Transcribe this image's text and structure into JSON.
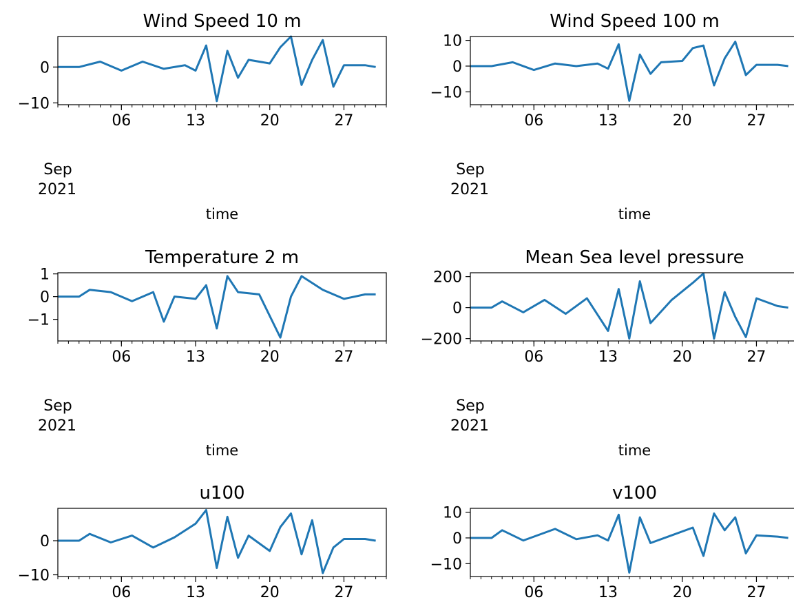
{
  "figure": {
    "time_axis": {
      "xlabel": "time",
      "tick_labels": [
        "06",
        "13",
        "20",
        "27"
      ],
      "month_label": "Sep",
      "year_label": "2021",
      "range": [
        "2021-08-31",
        "2021-10-01"
      ]
    },
    "line_color": "#1f77b4"
  },
  "chart_data": [
    {
      "type": "line",
      "title": "Wind Speed 10 m",
      "xlabel": "time",
      "ylim": [
        -10.5,
        8.5
      ],
      "yticks": [
        0,
        -10
      ],
      "ytick_labels": [
        "0",
        "−10"
      ],
      "x_dates": [
        "2021-08-31",
        "2021-09-02",
        "2021-09-04",
        "2021-09-06",
        "2021-09-08",
        "2021-09-10",
        "2021-09-12",
        "2021-09-13",
        "2021-09-14",
        "2021-09-15",
        "2021-09-16",
        "2021-09-17",
        "2021-09-18",
        "2021-09-20",
        "2021-09-21",
        "2021-09-22",
        "2021-09-23",
        "2021-09-24",
        "2021-09-25",
        "2021-09-26",
        "2021-09-27",
        "2021-09-29",
        "2021-09-30"
      ],
      "values": [
        0,
        0,
        1.5,
        -1.0,
        1.5,
        -0.5,
        0.5,
        -1.0,
        6.0,
        -9.5,
        4.5,
        -3.0,
        2.0,
        1.0,
        5.5,
        8.5,
        -5.0,
        2.0,
        7.5,
        -5.5,
        0.5,
        0.5,
        0.0
      ]
    },
    {
      "type": "line",
      "title": "Wind Speed 100 m",
      "xlabel": "time",
      "ylim": [
        -15,
        11.5
      ],
      "yticks": [
        10,
        0,
        -10
      ],
      "ytick_labels": [
        "10",
        "0",
        "−10"
      ],
      "x_dates": [
        "2021-08-31",
        "2021-09-02",
        "2021-09-04",
        "2021-09-06",
        "2021-09-08",
        "2021-09-10",
        "2021-09-12",
        "2021-09-13",
        "2021-09-14",
        "2021-09-15",
        "2021-09-16",
        "2021-09-17",
        "2021-09-18",
        "2021-09-20",
        "2021-09-21",
        "2021-09-22",
        "2021-09-23",
        "2021-09-24",
        "2021-09-25",
        "2021-09-26",
        "2021-09-27",
        "2021-09-29",
        "2021-09-30"
      ],
      "values": [
        0,
        0,
        1.5,
        -1.5,
        1.0,
        0.0,
        1.0,
        -1.0,
        8.5,
        -13.5,
        4.5,
        -3.0,
        1.5,
        2.0,
        7.0,
        8.0,
        -7.5,
        3.0,
        9.5,
        -3.5,
        0.5,
        0.5,
        0.0
      ]
    },
    {
      "type": "line",
      "title": "Temperature 2 m",
      "xlabel": "time",
      "ylim": [
        -1.95,
        1.05
      ],
      "yticks": [
        1,
        0,
        -1
      ],
      "ytick_labels": [
        "1",
        "0",
        "−1"
      ],
      "x_dates": [
        "2021-08-31",
        "2021-09-02",
        "2021-09-03",
        "2021-09-05",
        "2021-09-07",
        "2021-09-09",
        "2021-09-10",
        "2021-09-11",
        "2021-09-13",
        "2021-09-14",
        "2021-09-15",
        "2021-09-16",
        "2021-09-17",
        "2021-09-19",
        "2021-09-21",
        "2021-09-22",
        "2021-09-23",
        "2021-09-25",
        "2021-09-27",
        "2021-09-29",
        "2021-09-30"
      ],
      "values": [
        0,
        0,
        0.3,
        0.2,
        -0.2,
        0.2,
        -1.1,
        0.0,
        -0.1,
        0.5,
        -1.4,
        0.9,
        0.2,
        0.1,
        -1.8,
        0.0,
        0.9,
        0.3,
        -0.1,
        0.1,
        0.1
      ]
    },
    {
      "type": "line",
      "title": "Mean Sea level pressure",
      "xlabel": "time",
      "ylim": [
        -215,
        225
      ],
      "yticks": [
        200,
        0,
        -200
      ],
      "ytick_labels": [
        "200",
        "0",
        "−200"
      ],
      "x_dates": [
        "2021-08-31",
        "2021-09-02",
        "2021-09-03",
        "2021-09-05",
        "2021-09-07",
        "2021-09-09",
        "2021-09-11",
        "2021-09-13",
        "2021-09-14",
        "2021-09-15",
        "2021-09-16",
        "2021-09-17",
        "2021-09-19",
        "2021-09-21",
        "2021-09-22",
        "2021-09-23",
        "2021-09-24",
        "2021-09-25",
        "2021-09-26",
        "2021-09-27",
        "2021-09-29",
        "2021-09-30"
      ],
      "values": [
        0,
        0,
        40,
        -30,
        50,
        -40,
        60,
        -150,
        120,
        -200,
        170,
        -100,
        50,
        160,
        220,
        -200,
        100,
        -60,
        -190,
        60,
        10,
        0
      ]
    },
    {
      "type": "line",
      "title": "u100",
      "xlabel": "time",
      "ylim": [
        -10.5,
        9.5
      ],
      "yticks": [
        0,
        -10
      ],
      "ytick_labels": [
        "0",
        "−10"
      ],
      "x_dates": [
        "2021-08-31",
        "2021-09-02",
        "2021-09-03",
        "2021-09-05",
        "2021-09-07",
        "2021-09-09",
        "2021-09-11",
        "2021-09-13",
        "2021-09-14",
        "2021-09-15",
        "2021-09-16",
        "2021-09-17",
        "2021-09-18",
        "2021-09-20",
        "2021-09-21",
        "2021-09-22",
        "2021-09-23",
        "2021-09-24",
        "2021-09-25",
        "2021-09-26",
        "2021-09-27",
        "2021-09-29",
        "2021-09-30"
      ],
      "values": [
        0,
        0,
        2.0,
        -0.5,
        1.5,
        -2.0,
        1.0,
        5.0,
        9.0,
        -8.0,
        7.0,
        -5.0,
        1.5,
        -3.0,
        4.0,
        8.0,
        -4.0,
        6.0,
        -9.5,
        -2.0,
        0.5,
        0.5,
        0.0
      ]
    },
    {
      "type": "line",
      "title": "v100",
      "xlabel": "time",
      "ylim": [
        -15,
        11.5
      ],
      "yticks": [
        10,
        0,
        -10
      ],
      "ytick_labels": [
        "10",
        "0",
        "−10"
      ],
      "x_dates": [
        "2021-08-31",
        "2021-09-02",
        "2021-09-03",
        "2021-09-05",
        "2021-09-07",
        "2021-09-08",
        "2021-09-10",
        "2021-09-12",
        "2021-09-13",
        "2021-09-14",
        "2021-09-15",
        "2021-09-16",
        "2021-09-17",
        "2021-09-19",
        "2021-09-21",
        "2021-09-22",
        "2021-09-23",
        "2021-09-24",
        "2021-09-25",
        "2021-09-26",
        "2021-09-27",
        "2021-09-29",
        "2021-09-30"
      ],
      "values": [
        0,
        0,
        3.0,
        -1.0,
        2.0,
        3.5,
        -0.5,
        1.0,
        -1.0,
        9.0,
        -13.5,
        8.0,
        -2.0,
        1.0,
        4.0,
        -7.0,
        9.5,
        3.0,
        8.0,
        -6.0,
        1.0,
        0.5,
        0.0
      ]
    }
  ]
}
